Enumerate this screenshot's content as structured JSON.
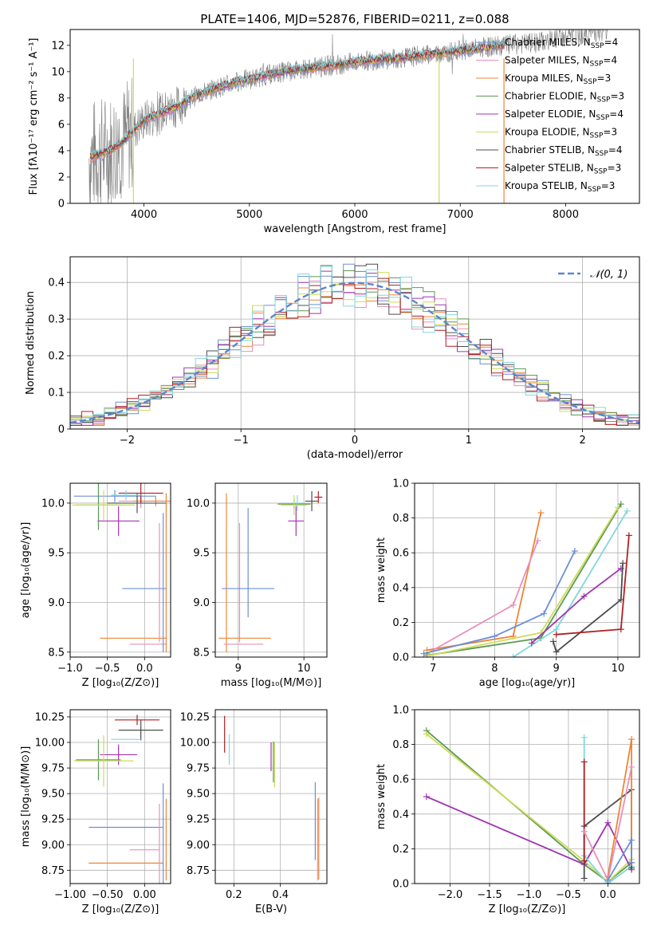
{
  "figure": {
    "title": "PLATE=1406, MJD=52876, FIBERID=0211, z=0.088"
  },
  "colors": {
    "c1": "#6b8fd6",
    "c2": "#ee8535",
    "c3": "#e88fba",
    "c4": "#5b9955",
    "c5": "#a035b0",
    "c6": "#cddc5a",
    "c7": "#4d4d4d",
    "c8": "#b01f23",
    "c9": "#7fd7df",
    "data": "#808080"
  },
  "chart_data": [
    {
      "id": "spectrum",
      "type": "line",
      "title": "PLATE=1406, MJD=52876, FIBERID=0211, z=0.088",
      "xlabel": "wavelength [Angstrom, rest frame]",
      "ylabel": "Flux [fλ10⁻¹⁷ erg cm⁻² s⁻¹ A⁻¹]",
      "xlim": [
        3300,
        8700
      ],
      "ylim": [
        0,
        13.2
      ],
      "xticks": [
        4000,
        5000,
        6000,
        7000,
        8000
      ],
      "yticks": [
        0,
        2,
        4,
        6,
        8,
        10,
        12
      ],
      "grid": false,
      "legend_position": "top-right",
      "continuum": {
        "x": [
          3500,
          3600,
          3700,
          3800,
          3900,
          4000,
          4100,
          4200,
          4300,
          4400,
          4500,
          4600,
          4700,
          4800,
          4900,
          5000,
          5200,
          5400,
          5600,
          5800,
          6000,
          6200,
          6400,
          6600,
          6800,
          7000,
          7200,
          7400,
          7600,
          7800,
          8000,
          8200,
          8400
        ],
        "y": [
          3.5,
          3.8,
          4.1,
          4.7,
          5.5,
          6.3,
          6.6,
          7.0,
          7.3,
          7.8,
          8.2,
          8.5,
          8.8,
          9.0,
          9.3,
          9.4,
          9.8,
          10.1,
          10.3,
          10.5,
          10.7,
          10.9,
          11.0,
          11.2,
          11.4,
          11.6,
          11.8,
          12.0,
          12.1,
          12.3,
          12.6,
          12.9,
          13.2
        ]
      },
      "series": [
        {
          "name": "Chabrier MILES, N_SSP=4",
          "color": "#6b8fd6"
        },
        {
          "name": "Salpeter MILES, N_SSP=4",
          "color": "#e88fba"
        },
        {
          "name": "Kroupa MILES, N_SSP=3",
          "color": "#ee8535"
        },
        {
          "name": "Chabrier ELODIE, N_SSP=3",
          "color": "#5b9955"
        },
        {
          "name": "Salpeter ELODIE, N_SSP=4",
          "color": "#a035b0"
        },
        {
          "name": "Kroupa ELODIE, N_SSP=3",
          "color": "#cddc5a"
        },
        {
          "name": "Chabrier STELIB, N_SSP=4",
          "color": "#4d4d4d"
        },
        {
          "name": "Salpeter STELIB, N_SSP=3",
          "color": "#b01f23"
        },
        {
          "name": "Kroupa STELIB, N_SSP=3",
          "color": "#7fd7df"
        }
      ]
    },
    {
      "id": "residuals",
      "type": "histogram",
      "xlabel": "(data-model)/error",
      "ylabel": "Normed distribution",
      "xlim": [
        -2.5,
        2.5
      ],
      "ylim": [
        0,
        0.47
      ],
      "xticks": [
        -2,
        -1,
        0,
        1,
        2
      ],
      "yticks": [
        0.0,
        0.1,
        0.2,
        0.3,
        0.4
      ],
      "grid": true,
      "legend_position": "top-right",
      "reference_curve": {
        "name": "𝒩(0, 1)",
        "mean": 0,
        "std": 1,
        "color": "#5b86cc"
      },
      "bin_width": 0.1
    },
    {
      "id": "age-vs-Z",
      "type": "scatter",
      "xlabel": "Z [log₁₀(Z/Z⊙)]",
      "ylabel": "age  [log₁₀(age/yr)]",
      "xlim": [
        -1.0,
        0.35
      ],
      "ylim": [
        8.45,
        10.2
      ],
      "xticks": [
        -1.0,
        -0.5,
        0.0
      ],
      "yticks": [
        8.5,
        9.0,
        9.5,
        10.0
      ],
      "grid": true,
      "points": [
        {
          "c": "#6b8fd6",
          "x": -0.4,
          "y": 10.07,
          "xerr": 0.55,
          "yerr": 0.06
        },
        {
          "c": "#e88fba",
          "x": -0.05,
          "y": 10.02,
          "xerr": 0.3,
          "yerr": 0.07
        },
        {
          "c": "#ee8535",
          "x": 0.15,
          "y": 10.02,
          "xerr": 0.3,
          "yerr": 0.05
        },
        {
          "c": "#5b9955",
          "x": -0.62,
          "y": 9.98,
          "xerr": 0.3,
          "yerr": 0.25
        },
        {
          "c": "#a035b0",
          "x": -0.35,
          "y": 9.82,
          "xerr": 0.28,
          "yerr": 0.15
        },
        {
          "c": "#cddc5a",
          "x": -0.55,
          "y": 9.98,
          "xerr": 0.42,
          "yerr": 0.15
        },
        {
          "c": "#4d4d4d",
          "x": -0.1,
          "y": 10.0,
          "xerr": 0.4,
          "yerr": 0.1
        },
        {
          "c": "#b01f23",
          "x": -0.05,
          "y": 10.1,
          "xerr": 0.3,
          "yerr": 0.1
        },
        {
          "c": "#7fd7df",
          "x": -0.25,
          "y": 10.08,
          "xerr": 0.2,
          "yerr": 0.05
        },
        {
          "c": "#6b8fd6",
          "x": 0.0,
          "y": 9.14,
          "xerr": 0.3,
          "yerr": 0.0
        },
        {
          "c": "#ee8535",
          "x": -0.15,
          "y": 8.64,
          "xerr": 0.45,
          "yerr": 0.0
        },
        {
          "c": "#e88fba",
          "x": 0.05,
          "y": 8.58,
          "xerr": 0.25,
          "yerr": 0.0
        },
        {
          "c": "#e88fba",
          "x": 0.2,
          "y": 9.2,
          "xerr": 0.0,
          "yerr": 0.6
        },
        {
          "c": "#6b8fd6",
          "x": 0.25,
          "y": 9.2,
          "xerr": 0.0,
          "yerr": 0.7
        },
        {
          "c": "#ee8535",
          "x": 0.29,
          "y": 9.3,
          "xerr": 0.0,
          "yerr": 0.8
        }
      ]
    },
    {
      "id": "age-vs-mass",
      "type": "scatter",
      "xlabel": "mass [log₁₀(M/M⊙)]",
      "ylabel": "",
      "xlim": [
        8.65,
        10.35
      ],
      "ylim": [
        8.45,
        10.2
      ],
      "xticks": [
        9,
        10
      ],
      "yticks": [
        8.5,
        9.0,
        9.5,
        10.0
      ],
      "grid": true,
      "points": [
        {
          "c": "#ee8535",
          "x": 8.82,
          "y": 9.3,
          "xerr": 0.0,
          "yerr": 0.8
        },
        {
          "c": "#e88fba",
          "x": 9.02,
          "y": 9.2,
          "xerr": 0.0,
          "yerr": 0.6
        },
        {
          "c": "#6b8fd6",
          "x": 9.15,
          "y": 9.4,
          "xerr": 0.0,
          "yerr": 0.55
        },
        {
          "c": "#6b8fd6",
          "x": 9.15,
          "y": 9.14,
          "xerr": 0.4,
          "yerr": 0.0
        },
        {
          "c": "#ee8535",
          "x": 9.1,
          "y": 8.64,
          "xerr": 0.4,
          "yerr": 0.0
        },
        {
          "c": "#e88fba",
          "x": 9.08,
          "y": 8.58,
          "xerr": 0.3,
          "yerr": 0.0
        },
        {
          "c": "#5b9955",
          "x": 9.85,
          "y": 9.99,
          "xerr": 0.25,
          "yerr": 0.05
        },
        {
          "c": "#cddc5a",
          "x": 9.85,
          "y": 9.98,
          "xerr": 0.2,
          "yerr": 0.1
        },
        {
          "c": "#a035b0",
          "x": 9.88,
          "y": 9.82,
          "xerr": 0.12,
          "yerr": 0.15
        },
        {
          "c": "#7fd7df",
          "x": 9.9,
          "y": 10.0,
          "xerr": 0.1,
          "yerr": 0.08
        },
        {
          "c": "#4d4d4d",
          "x": 10.12,
          "y": 10.02,
          "xerr": 0.1,
          "yerr": 0.1
        },
        {
          "c": "#b01f23",
          "x": 10.22,
          "y": 10.06,
          "xerr": 0.06,
          "yerr": 0.06
        }
      ]
    },
    {
      "id": "mass-weight-vs-age",
      "type": "line",
      "xlabel": "age  [log₁₀(age/yr)]",
      "ylabel": "mass weight",
      "xlim": [
        6.7,
        10.35
      ],
      "ylim": [
        0,
        1
      ],
      "xticks": [
        7,
        8,
        9,
        10
      ],
      "yticks": [
        0.0,
        0.2,
        0.4,
        0.6,
        0.8,
        1.0
      ],
      "grid": true,
      "series": [
        {
          "c": "#ee8535",
          "x": [
            6.9,
            8.3,
            8.75
          ],
          "y": [
            0.04,
            0.12,
            0.83
          ]
        },
        {
          "c": "#e88fba",
          "x": [
            6.9,
            8.3,
            8.7
          ],
          "y": [
            0.02,
            0.3,
            0.67
          ]
        },
        {
          "c": "#6b8fd6",
          "x": [
            6.85,
            8.0,
            8.8,
            9.3
          ],
          "y": [
            0.02,
            0.12,
            0.25,
            0.61
          ]
        },
        {
          "c": "#5b9955",
          "x": [
            6.9,
            8.75,
            10.05
          ],
          "y": [
            0.01,
            0.11,
            0.88
          ]
        },
        {
          "c": "#cddc5a",
          "x": [
            6.95,
            8.75,
            10.0
          ],
          "y": [
            0.01,
            0.14,
            0.86
          ]
        },
        {
          "c": "#7fd7df",
          "x": [
            8.3,
            9.0,
            10.15
          ],
          "y": [
            0.0,
            0.16,
            0.84
          ]
        },
        {
          "c": "#a035b0",
          "x": [
            8.6,
            9.45,
            10.05
          ],
          "y": [
            0.08,
            0.35,
            0.51
          ]
        },
        {
          "c": "#4d4d4d",
          "x": [
            8.95,
            9.0,
            10.05,
            10.08
          ],
          "y": [
            0.09,
            0.03,
            0.33,
            0.54
          ]
        },
        {
          "c": "#b01f23",
          "x": [
            9.0,
            10.05,
            10.18
          ],
          "y": [
            0.13,
            0.16,
            0.7
          ]
        }
      ]
    },
    {
      "id": "mass-vs-Z",
      "type": "scatter",
      "xlabel": "Z [log₁₀(Z/Z⊙)]",
      "ylabel": "mass [log₁₀(M/M⊙)]",
      "xlim": [
        -1.0,
        0.35
      ],
      "ylim": [
        8.62,
        10.32
      ],
      "xticks": [
        -1.0,
        -0.5,
        0.0
      ],
      "yticks": [
        8.75,
        9.0,
        9.25,
        9.5,
        9.75,
        10.0,
        10.25
      ],
      "grid": true,
      "points": [
        {
          "c": "#b01f23",
          "x": -0.1,
          "y": 10.22,
          "xerr": 0.3,
          "yerr": 0.05
        },
        {
          "c": "#4d4d4d",
          "x": -0.05,
          "y": 10.12,
          "xerr": 0.3,
          "yerr": 0.1
        },
        {
          "c": "#7fd7df",
          "x": -0.25,
          "y": 10.03,
          "xerr": 0.2,
          "yerr": 0.0
        },
        {
          "c": "#a035b0",
          "x": -0.35,
          "y": 9.88,
          "xerr": 0.25,
          "yerr": 0.1
        },
        {
          "c": "#5b9955",
          "x": -0.62,
          "y": 9.83,
          "xerr": 0.3,
          "yerr": 0.2
        },
        {
          "c": "#cddc5a",
          "x": -0.55,
          "y": 9.82,
          "xerr": 0.4,
          "yerr": 0.25
        },
        {
          "c": "#6b8fd6",
          "x": -0.25,
          "y": 9.17,
          "xerr": 0.5,
          "yerr": 0.0
        },
        {
          "c": "#e88fba",
          "x": 0.0,
          "y": 8.95,
          "xerr": 0.2,
          "yerr": 0.0
        },
        {
          "c": "#ee8535",
          "x": -0.25,
          "y": 8.82,
          "xerr": 0.5,
          "yerr": 0.0
        },
        {
          "c": "#6b8fd6",
          "x": 0.25,
          "y": 9.1,
          "xerr": 0.0,
          "yerr": 0.5
        },
        {
          "c": "#e88fba",
          "x": 0.2,
          "y": 8.95,
          "xerr": 0.0,
          "yerr": 0.45
        },
        {
          "c": "#ee8535",
          "x": 0.29,
          "y": 9.05,
          "xerr": 0.0,
          "yerr": 0.4
        }
      ]
    },
    {
      "id": "mass-vs-EBV",
      "type": "scatter",
      "xlabel": "E(B-V)",
      "ylabel": "",
      "xlim": [
        0.12,
        0.6
      ],
      "ylim": [
        8.62,
        10.32
      ],
      "xticks": [
        0.2,
        0.4
      ],
      "yticks": [
        8.75,
        9.0,
        9.25,
        9.5,
        9.75,
        10.0,
        10.25
      ],
      "grid": true,
      "points": [
        {
          "c": "#b01f23",
          "x": 0.16,
          "y": 10.08,
          "xerr": 0.0,
          "yerr": 0.18
        },
        {
          "c": "#7fd7df",
          "x": 0.18,
          "y": 9.93,
          "xerr": 0.0,
          "yerr": 0.15
        },
        {
          "c": "#a035b0",
          "x": 0.36,
          "y": 9.86,
          "xerr": 0.0,
          "yerr": 0.14
        },
        {
          "c": "#5b9955",
          "x": 0.37,
          "y": 9.81,
          "xerr": 0.0,
          "yerr": 0.2
        },
        {
          "c": "#cddc5a",
          "x": 0.375,
          "y": 9.78,
          "xerr": 0.0,
          "yerr": 0.22
        },
        {
          "c": "#6b8fd6",
          "x": 0.55,
          "y": 9.23,
          "xerr": 0.0,
          "yerr": 0.38
        },
        {
          "c": "#e88fba",
          "x": 0.56,
          "y": 9.05,
          "xerr": 0.0,
          "yerr": 0.4
        },
        {
          "c": "#ee8535",
          "x": 0.565,
          "y": 9.06,
          "xerr": 0.0,
          "yerr": 0.4
        }
      ]
    },
    {
      "id": "mass-weight-vs-Z",
      "type": "line",
      "xlabel": "Z [log₁₀(Z/Z⊙)]",
      "ylabel": "mass weight",
      "xlim": [
        -2.45,
        0.4
      ],
      "ylim": [
        0,
        1
      ],
      "xticks": [
        -2.0,
        -1.5,
        -1.0,
        -0.5,
        0.0
      ],
      "yticks": [
        0.0,
        0.2,
        0.4,
        0.6,
        0.8,
        1.0
      ],
      "grid": true,
      "series": [
        {
          "c": "#5b9955",
          "x": [
            -2.3,
            -0.3,
            0.0,
            0.3
          ],
          "y": [
            0.88,
            0.11,
            0.01,
            0.12
          ]
        },
        {
          "c": "#cddc5a",
          "x": [
            -2.3,
            -0.3,
            0.0,
            0.3
          ],
          "y": [
            0.86,
            0.13,
            0.01,
            0.14
          ]
        },
        {
          "c": "#a035b0",
          "x": [
            -2.3,
            -0.3,
            0.0,
            0.3
          ],
          "y": [
            0.5,
            0.11,
            0.35,
            0.08
          ]
        },
        {
          "c": "#7fd7df",
          "x": [
            -0.3,
            -0.3,
            0.0,
            0.3
          ],
          "y": [
            0.84,
            0.16,
            0.0,
            0.1
          ]
        },
        {
          "c": "#4d4d4d",
          "x": [
            -0.3,
            -0.3,
            0.3,
            0.3
          ],
          "y": [
            0.03,
            0.33,
            0.54,
            0.09
          ]
        },
        {
          "c": "#b01f23",
          "x": [
            -0.3,
            -0.3
          ],
          "y": [
            0.7,
            0.13
          ]
        },
        {
          "c": "#ee8535",
          "x": [
            0.0,
            0.3,
            0.3
          ],
          "y": [
            0.04,
            0.83,
            0.12
          ]
        },
        {
          "c": "#e88fba",
          "x": [
            -0.3,
            0.0,
            0.3
          ],
          "y": [
            0.3,
            0.02,
            0.67
          ]
        },
        {
          "c": "#6b8fd6",
          "x": [
            0.0,
            0.3,
            0.3
          ],
          "y": [
            0.02,
            0.25,
            0.12
          ]
        }
      ]
    }
  ]
}
